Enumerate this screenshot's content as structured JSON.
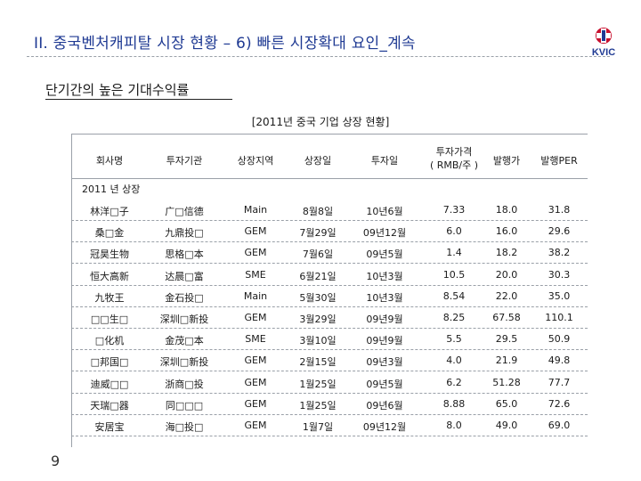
{
  "slide": {
    "title": "II. 중국벤처캐피탈 시장 현황 – 6) 빠른 시장확대 요인_계속",
    "subtitle": "단기간의 높은 기대수익률",
    "table_caption": "[2011년 중국 기업 상장 현황]",
    "logo_text": "KVIC",
    "page_number": "9"
  },
  "table": {
    "headers": [
      "회사명",
      "투자기관",
      "상장지역",
      "상장일",
      "투자일",
      "투자가격\n( RMB/주 )",
      "발행가",
      "발행PER"
    ],
    "group_label": "2011 년 상장",
    "rows": [
      [
        "林洋□子",
        "广□信德",
        "Main",
        "8월8일",
        "10년6월",
        "7.33",
        "18.0",
        "31.8"
      ],
      [
        "桑□金",
        "九鼎投□",
        "GEM",
        "7월29일",
        "09년12월",
        "6.0",
        "16.0",
        "29.6"
      ],
      [
        "冠昊生物",
        "思格□本",
        "GEM",
        "7월6일",
        "09년5월",
        "1.4",
        "18.2",
        "38.2"
      ],
      [
        "恒大高新",
        "达晨□富",
        "SME",
        "6월21일",
        "10년3월",
        "10.5",
        "20.0",
        "30.3"
      ],
      [
        "九牧王",
        "金石投□",
        "Main",
        "5월30일",
        "10년3월",
        "8.54",
        "22.0",
        "35.0"
      ],
      [
        "□□生□",
        "深圳□新投",
        "GEM",
        "3월29일",
        "09년9월",
        "8.25",
        "67.58",
        "110.1"
      ],
      [
        "□化机",
        "金茂□本",
        "SME",
        "3월10일",
        "09년9월",
        "5.5",
        "29.5",
        "50.9"
      ],
      [
        "□邦国□",
        "深圳□新投",
        "GEM",
        "2월15일",
        "09년3월",
        "4.0",
        "21.9",
        "49.8"
      ],
      [
        "迪威□□",
        "浙商□投",
        "GEM",
        "1월25일",
        "09년5월",
        "6.2",
        "51.28",
        "77.7"
      ],
      [
        "天瑞□器",
        "同□□□",
        "GEM",
        "1월25일",
        "09년6월",
        "8.88",
        "65.0",
        "72.6"
      ],
      [
        "安居宝",
        "海□投□",
        "GEM",
        "1월7일",
        "09년12월",
        "8.0",
        "49.0",
        "69.0"
      ]
    ]
  }
}
